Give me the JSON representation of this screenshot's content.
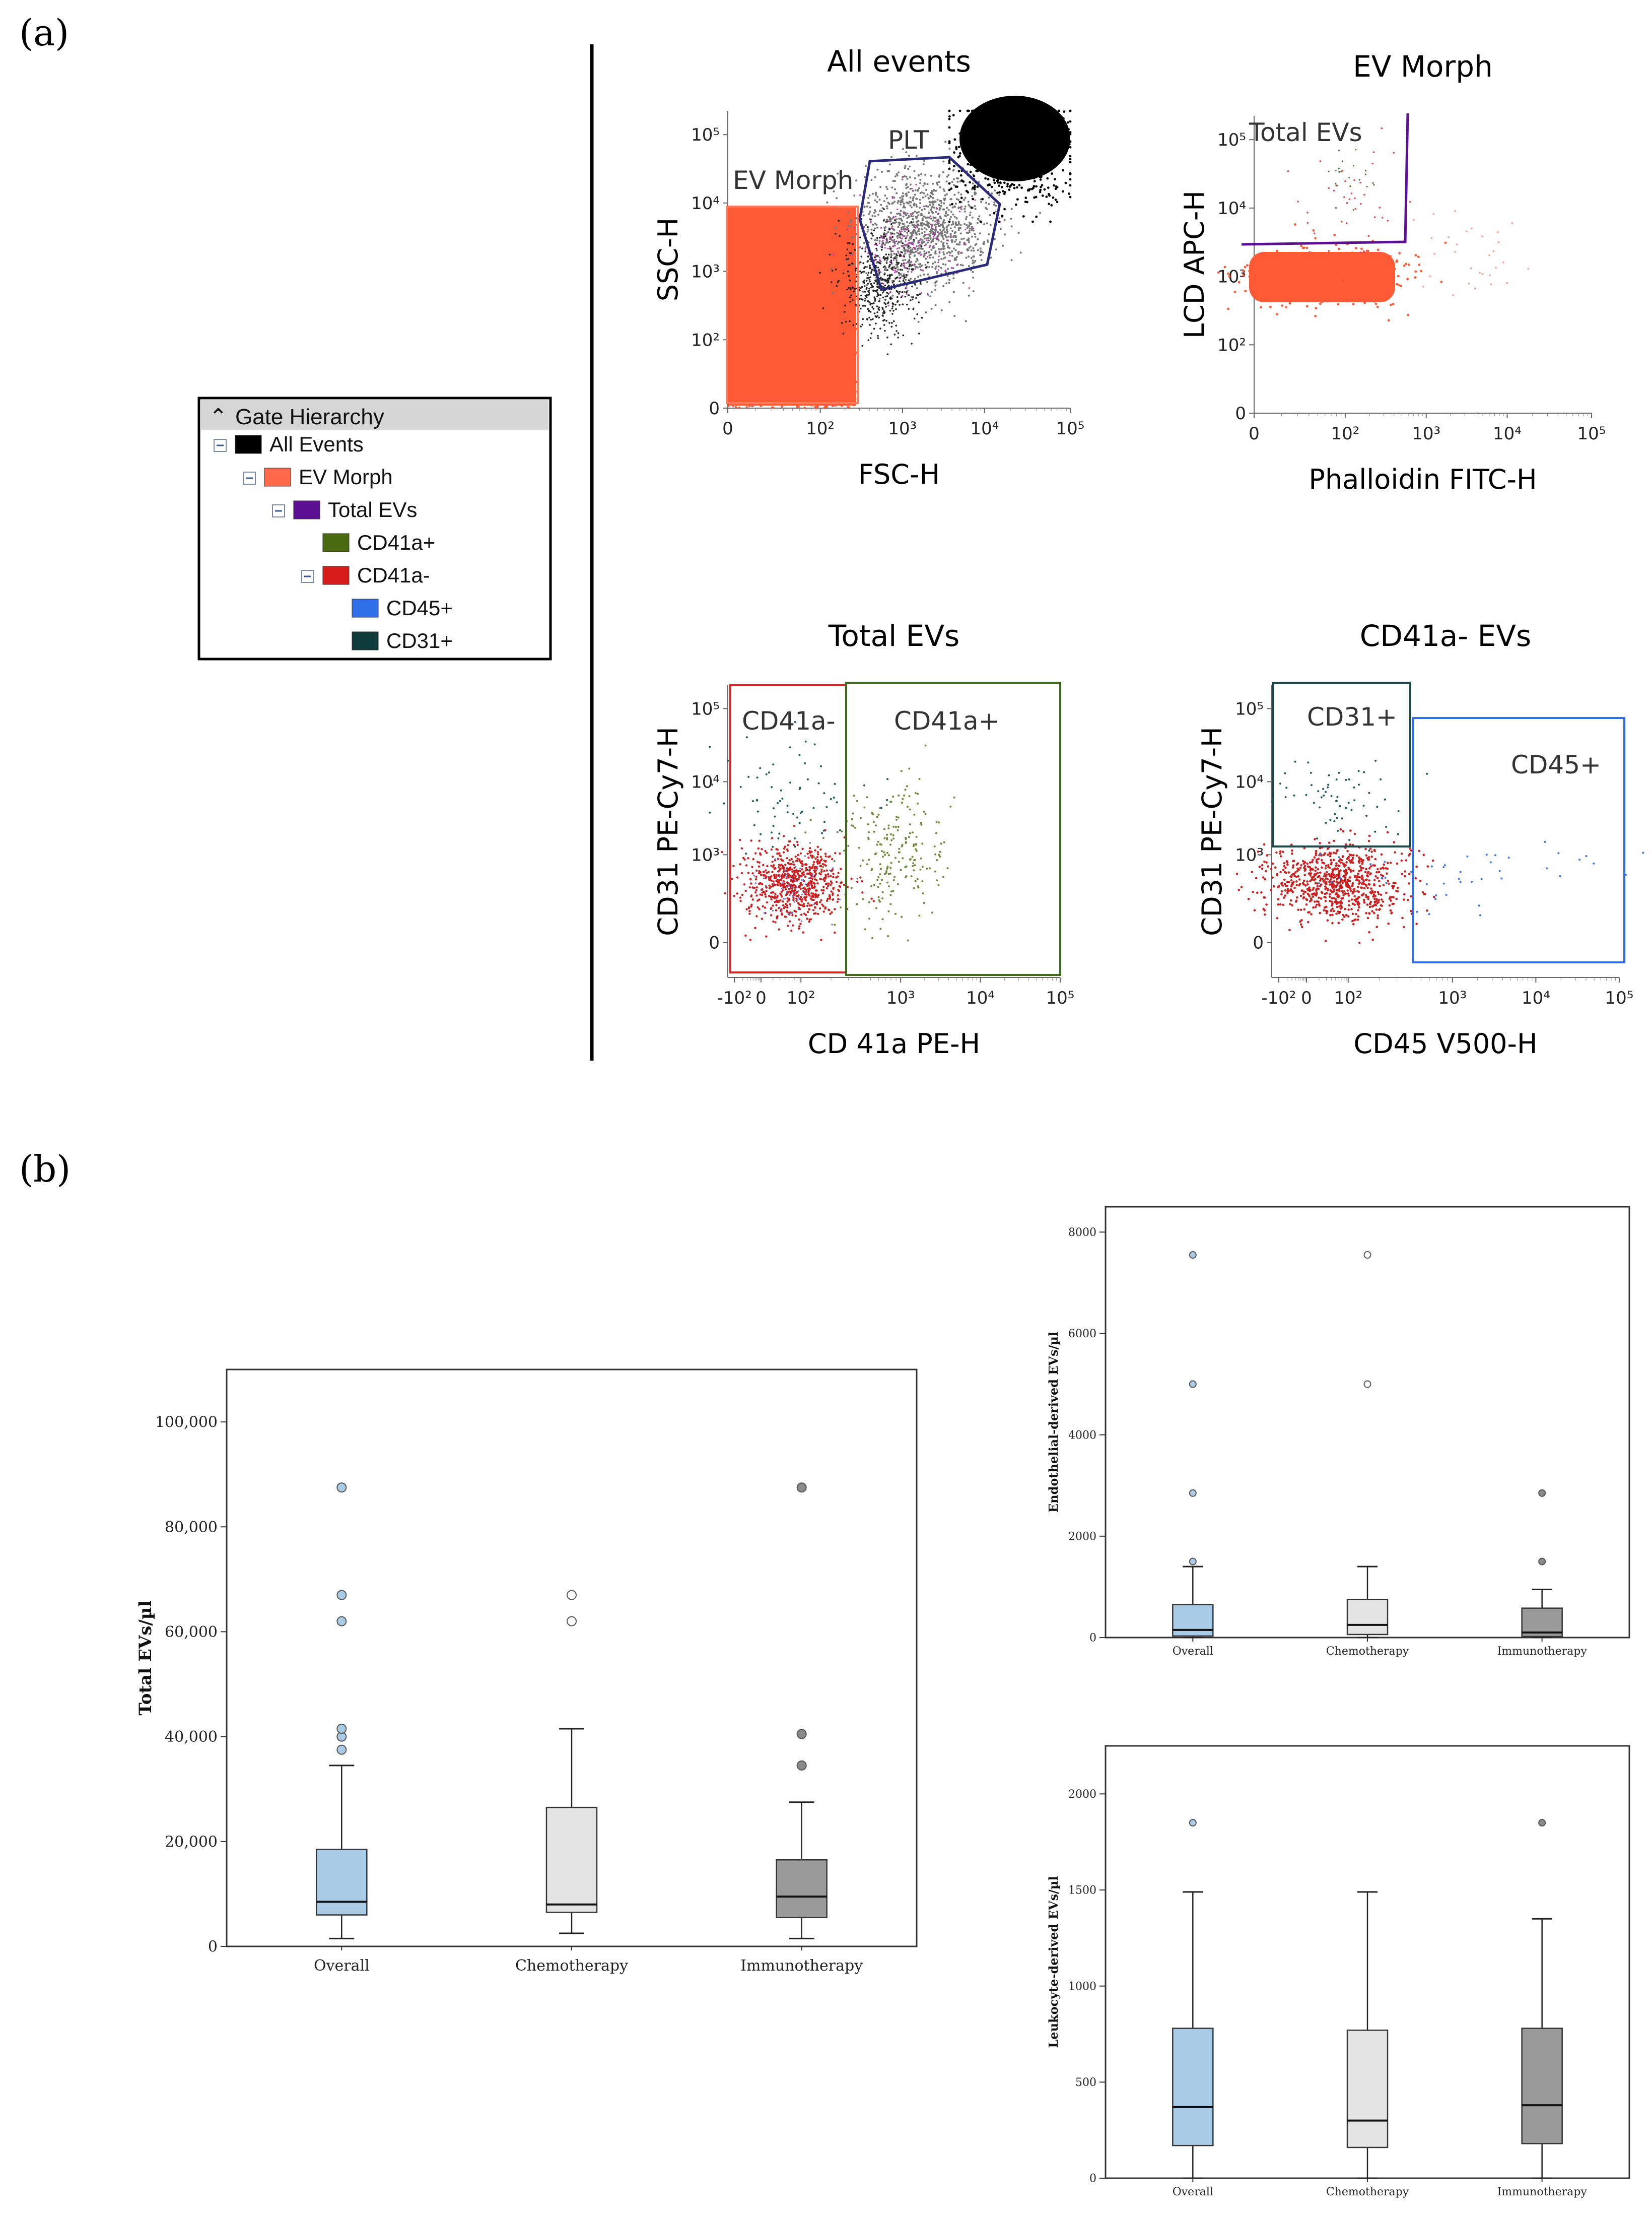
{
  "panel_labels": {
    "a": "(a)",
    "b": "(b)"
  },
  "gate_hierarchy": {
    "title": "Gate Hierarchy",
    "items": [
      {
        "label": "All Events",
        "color": "#000000",
        "level": 0,
        "collapsible": true
      },
      {
        "label": "EV Morph",
        "color": "#ff6a4a",
        "level": 1,
        "collapsible": true
      },
      {
        "label": "Total EVs",
        "color": "#5b0f91",
        "level": 2,
        "collapsible": true
      },
      {
        "label": "CD41a+",
        "color": "#4a6a12",
        "level": 3,
        "collapsible": false
      },
      {
        "label": "CD41a-",
        "color": "#d81c1c",
        "level": 3,
        "collapsible": true
      },
      {
        "label": "CD45+",
        "color": "#2f6fe8",
        "level": 4,
        "collapsible": false
      },
      {
        "label": "CD31+",
        "color": "#0e3a3a",
        "level": 4,
        "collapsible": false
      }
    ]
  },
  "chart_data": [
    {
      "type": "scatter",
      "id": "all-events",
      "title": "All events",
      "xlabel": "FSC-H",
      "ylabel": "SSC-H",
      "xticks": [
        "0",
        "10²",
        "10³",
        "10⁴",
        "10⁵"
      ],
      "yticks": [
        "0",
        "10²",
        "10³",
        "10⁴",
        "10⁵"
      ],
      "gates": [
        {
          "name": "EV Morph",
          "label": "EV Morph",
          "color": "#ff7a5c"
        },
        {
          "name": "PLT",
          "label": "PLT",
          "color": "#2a2a7a"
        }
      ],
      "populations": [
        {
          "name": "EV Morph events",
          "color": "#ff5a36"
        },
        {
          "name": "PLT events",
          "color": "#777777"
        },
        {
          "name": "Large events",
          "color": "#000000"
        }
      ]
    },
    {
      "type": "scatter",
      "id": "ev-morph",
      "title": "EV Morph",
      "xlabel": "Phalloidin FITC-H",
      "ylabel": "LCD APC-H",
      "xticks": [
        "0",
        "10²",
        "10³",
        "10⁴",
        "10⁵"
      ],
      "yticks": [
        "0",
        "10²",
        "10³",
        "10⁴",
        "10⁵"
      ],
      "gates": [
        {
          "name": "Total EVs",
          "label": "Total EVs",
          "color": "#5b0f91"
        }
      ],
      "populations": [
        {
          "name": "EV events",
          "color": "#ff5a36"
        }
      ]
    },
    {
      "type": "scatter",
      "id": "total-evs",
      "title": "Total EVs",
      "xlabel": "CD 41a PE-H",
      "ylabel": "CD31 PE-Cy7-H",
      "xticks": [
        "-10²",
        "0",
        "10²",
        "10³",
        "10⁴",
        "10⁵"
      ],
      "yticks": [
        "0",
        "10³",
        "10⁴",
        "10⁵"
      ],
      "gates": [
        {
          "name": "CD41a-",
          "label": "CD41a-",
          "color": "#d02a2a"
        },
        {
          "name": "CD41a+",
          "label": "CD41a+",
          "color": "#3f6a1e"
        }
      ],
      "populations": [
        {
          "name": "CD41a- events",
          "color": "#cc1f1f"
        },
        {
          "name": "CD41a+ events",
          "color": "#6c8a3a"
        },
        {
          "name": "CD31 events",
          "color": "#1f5a5a"
        }
      ]
    },
    {
      "type": "scatter",
      "id": "cd41a-neg-evs",
      "title": "CD41a- EVs",
      "xlabel": "CD45 V500-H",
      "ylabel": "CD31 PE-Cy7-H",
      "xticks": [
        "-10²",
        "0",
        "10²",
        "10³",
        "10⁴",
        "10⁵"
      ],
      "yticks": [
        "0",
        "10³",
        "10⁴",
        "10⁵"
      ],
      "gates": [
        {
          "name": "CD31+",
          "label": "CD31+",
          "color": "#1b4a4a"
        },
        {
          "name": "CD45+",
          "label": "CD45+",
          "color": "#2f6fe8"
        }
      ],
      "populations": [
        {
          "name": "CD41a- events",
          "color": "#cc1f1f"
        },
        {
          "name": "CD31+ events",
          "color": "#1f5a5a"
        },
        {
          "name": "CD45+ events",
          "color": "#3b78e7"
        }
      ]
    },
    {
      "type": "box",
      "id": "total-evs-box",
      "ylabel": "Total EVs/µl",
      "ylim": [
        0,
        110000
      ],
      "yticks": [
        0,
        20000,
        40000,
        60000,
        80000,
        100000
      ],
      "ytick_labels": [
        "0",
        "20,000",
        "40,000",
        "60,000",
        "80,000",
        "100,000"
      ],
      "categories": [
        "Overall",
        "Chemotherapy",
        "Immunotherapy"
      ],
      "colors": [
        "#a9cbe6",
        "#e4e4e4",
        "#9a9a9a"
      ],
      "outlier_colors": [
        "#a9cbe6",
        "#ffffff",
        "#8a8a8a"
      ],
      "boxes": [
        {
          "whislo": 1500,
          "q1": 6000,
          "med": 8500,
          "q3": 18500,
          "whishi": 34500,
          "outliers": [
            37500,
            40000,
            41500,
            62000,
            67000,
            87500
          ]
        },
        {
          "whislo": 2500,
          "q1": 6500,
          "med": 8000,
          "q3": 26500,
          "whishi": 41500,
          "outliers": [
            62000,
            67000
          ]
        },
        {
          "whislo": 1500,
          "q1": 5500,
          "med": 9500,
          "q3": 16500,
          "whishi": 27500,
          "outliers": [
            34500,
            40500,
            87500
          ]
        }
      ]
    },
    {
      "type": "box",
      "id": "endothelial-box",
      "ylabel": "Endothelial-derived EVs/µl",
      "ylim": [
        0,
        8500
      ],
      "yticks": [
        0,
        2000,
        4000,
        6000,
        8000
      ],
      "ytick_labels": [
        "0",
        "2000",
        "4000",
        "6000",
        "8000"
      ],
      "categories": [
        "Overall",
        "Chemotherapy",
        "Immunotherapy"
      ],
      "colors": [
        "#a9cbe6",
        "#e4e4e4",
        "#9a9a9a"
      ],
      "outlier_colors": [
        "#a9cbe6",
        "#ffffff",
        "#8a8a8a"
      ],
      "boxes": [
        {
          "whislo": 0,
          "q1": 30,
          "med": 150,
          "q3": 650,
          "whishi": 1400,
          "outliers": [
            1500,
            2850,
            5000,
            7550
          ]
        },
        {
          "whislo": 0,
          "q1": 60,
          "med": 250,
          "q3": 750,
          "whishi": 1400,
          "outliers": [
            5000,
            7550
          ]
        },
        {
          "whislo": 0,
          "q1": 20,
          "med": 100,
          "q3": 580,
          "whishi": 950,
          "outliers": [
            1500,
            2850
          ]
        }
      ]
    },
    {
      "type": "box",
      "id": "leukocyte-box",
      "ylabel": "Leukocyte-derived EVs/µl",
      "ylim": [
        0,
        2250
      ],
      "yticks": [
        0,
        500,
        1000,
        1500,
        2000
      ],
      "ytick_labels": [
        "0",
        "500",
        "1000",
        "1500",
        "2000"
      ],
      "categories": [
        "Overall",
        "Chemotherapy",
        "Immunotherapy"
      ],
      "colors": [
        "#a9cbe6",
        "#e4e4e4",
        "#9a9a9a"
      ],
      "outlier_colors": [
        "#a9cbe6",
        "#ffffff",
        "#8a8a8a"
      ],
      "boxes": [
        {
          "whislo": 0,
          "q1": 170,
          "med": 370,
          "q3": 780,
          "whishi": 1490,
          "outliers": [
            1850
          ]
        },
        {
          "whislo": 0,
          "q1": 160,
          "med": 300,
          "q3": 770,
          "whishi": 1490,
          "outliers": []
        },
        {
          "whislo": 0,
          "q1": 180,
          "med": 380,
          "q3": 780,
          "whishi": 1350,
          "outliers": [
            1850
          ]
        }
      ]
    }
  ]
}
